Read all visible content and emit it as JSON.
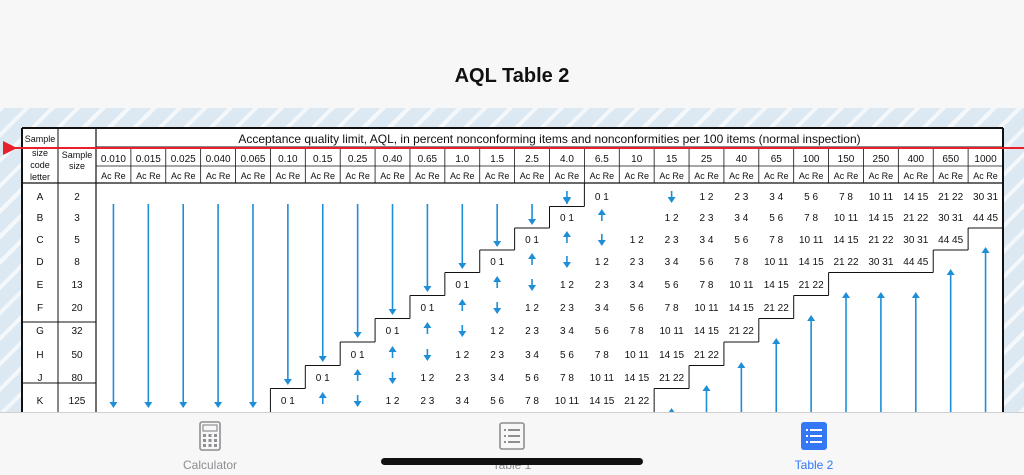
{
  "nav": {
    "title": "AQL Table 2"
  },
  "colors": {
    "arrow": "#1e8fd6",
    "slider": "#e8202a",
    "tab_active": "#3478f6",
    "tab_inactive": "#8e8e93"
  },
  "table": {
    "header": {
      "sample_size_code_letter": [
        "Sample",
        "size",
        "code",
        "letter"
      ],
      "sample_size": [
        "Sample",
        "size"
      ],
      "title": "Acceptance quality limit, AQL, in percent nonconforming items and nonconformities per 100 items (normal inspection)",
      "acre": "Ac Re"
    },
    "aql_values": [
      "0.010",
      "0.015",
      "0.025",
      "0.040",
      "0.065",
      "0.10",
      "0.15",
      "0.25",
      "0.40",
      "0.65",
      "1.0",
      "1.5",
      "2.5",
      "4.0",
      "6.5",
      "10",
      "15",
      "25",
      "40",
      "65",
      "100",
      "150",
      "250",
      "400",
      "650",
      "1000"
    ],
    "rows": [
      {
        "letter": "A",
        "size": "2"
      },
      {
        "letter": "B",
        "size": "3"
      },
      {
        "letter": "C",
        "size": "5"
      },
      {
        "letter": "D",
        "size": "8"
      },
      {
        "letter": "E",
        "size": "13"
      },
      {
        "letter": "F",
        "size": "20"
      },
      {
        "letter": "G",
        "size": "32"
      },
      {
        "letter": "H",
        "size": "50"
      },
      {
        "letter": "J",
        "size": "80"
      },
      {
        "letter": "K",
        "size": "125"
      }
    ],
    "cells": [
      {
        "row": 0,
        "col": 14,
        "text": "0  1"
      },
      {
        "row": 0,
        "col": 17,
        "text": "1  2"
      },
      {
        "row": 0,
        "col": 18,
        "text": "2  3"
      },
      {
        "row": 0,
        "col": 19,
        "text": "3  4"
      },
      {
        "row": 0,
        "col": 20,
        "text": "5  6"
      },
      {
        "row": 0,
        "col": 21,
        "text": "7  8"
      },
      {
        "row": 0,
        "col": 22,
        "text": "10 11"
      },
      {
        "row": 0,
        "col": 23,
        "text": "14 15"
      },
      {
        "row": 0,
        "col": 24,
        "text": "21 22"
      },
      {
        "row": 0,
        "col": 25,
        "text": "30 31"
      },
      {
        "row": 1,
        "col": 13,
        "text": "0  1"
      },
      {
        "row": 1,
        "col": 16,
        "text": "1  2"
      },
      {
        "row": 1,
        "col": 17,
        "text": "2  3"
      },
      {
        "row": 1,
        "col": 18,
        "text": "3  4"
      },
      {
        "row": 1,
        "col": 19,
        "text": "5  6"
      },
      {
        "row": 1,
        "col": 20,
        "text": "7  8"
      },
      {
        "row": 1,
        "col": 21,
        "text": "10 11"
      },
      {
        "row": 1,
        "col": 22,
        "text": "14 15"
      },
      {
        "row": 1,
        "col": 23,
        "text": "21 22"
      },
      {
        "row": 1,
        "col": 24,
        "text": "30 31"
      },
      {
        "row": 1,
        "col": 25,
        "text": "44 45"
      },
      {
        "row": 2,
        "col": 12,
        "text": "0  1"
      },
      {
        "row": 2,
        "col": 15,
        "text": "1  2"
      },
      {
        "row": 2,
        "col": 16,
        "text": "2  3"
      },
      {
        "row": 2,
        "col": 17,
        "text": "3  4"
      },
      {
        "row": 2,
        "col": 18,
        "text": "5  6"
      },
      {
        "row": 2,
        "col": 19,
        "text": "7  8"
      },
      {
        "row": 2,
        "col": 20,
        "text": "10 11"
      },
      {
        "row": 2,
        "col": 21,
        "text": "14 15"
      },
      {
        "row": 2,
        "col": 22,
        "text": "21 22"
      },
      {
        "row": 2,
        "col": 23,
        "text": "30 31"
      },
      {
        "row": 2,
        "col": 24,
        "text": "44 45"
      },
      {
        "row": 3,
        "col": 11,
        "text": "0  1"
      },
      {
        "row": 3,
        "col": 14,
        "text": "1  2"
      },
      {
        "row": 3,
        "col": 15,
        "text": "2  3"
      },
      {
        "row": 3,
        "col": 16,
        "text": "3  4"
      },
      {
        "row": 3,
        "col": 17,
        "text": "5  6"
      },
      {
        "row": 3,
        "col": 18,
        "text": "7  8"
      },
      {
        "row": 3,
        "col": 19,
        "text": "10 11"
      },
      {
        "row": 3,
        "col": 20,
        "text": "14 15"
      },
      {
        "row": 3,
        "col": 21,
        "text": "21 22"
      },
      {
        "row": 3,
        "col": 22,
        "text": "30 31"
      },
      {
        "row": 3,
        "col": 23,
        "text": "44 45"
      },
      {
        "row": 4,
        "col": 10,
        "text": "0  1"
      },
      {
        "row": 4,
        "col": 13,
        "text": "1  2"
      },
      {
        "row": 4,
        "col": 14,
        "text": "2  3"
      },
      {
        "row": 4,
        "col": 15,
        "text": "3  4"
      },
      {
        "row": 4,
        "col": 16,
        "text": "5  6"
      },
      {
        "row": 4,
        "col": 17,
        "text": "7  8"
      },
      {
        "row": 4,
        "col": 18,
        "text": "10 11"
      },
      {
        "row": 4,
        "col": 19,
        "text": "14 15"
      },
      {
        "row": 4,
        "col": 20,
        "text": "21 22"
      },
      {
        "row": 5,
        "col": 9,
        "text": "0  1"
      },
      {
        "row": 5,
        "col": 12,
        "text": "1  2"
      },
      {
        "row": 5,
        "col": 13,
        "text": "2  3"
      },
      {
        "row": 5,
        "col": 14,
        "text": "3  4"
      },
      {
        "row": 5,
        "col": 15,
        "text": "5  6"
      },
      {
        "row": 5,
        "col": 16,
        "text": "7  8"
      },
      {
        "row": 5,
        "col": 17,
        "text": "10 11"
      },
      {
        "row": 5,
        "col": 18,
        "text": "14 15"
      },
      {
        "row": 5,
        "col": 19,
        "text": "21 22"
      },
      {
        "row": 6,
        "col": 8,
        "text": "0  1"
      },
      {
        "row": 6,
        "col": 11,
        "text": "1  2"
      },
      {
        "row": 6,
        "col": 12,
        "text": "2  3"
      },
      {
        "row": 6,
        "col": 13,
        "text": "3  4"
      },
      {
        "row": 6,
        "col": 14,
        "text": "5  6"
      },
      {
        "row": 6,
        "col": 15,
        "text": "7  8"
      },
      {
        "row": 6,
        "col": 16,
        "text": "10 11"
      },
      {
        "row": 6,
        "col": 17,
        "text": "14 15"
      },
      {
        "row": 6,
        "col": 18,
        "text": "21 22"
      },
      {
        "row": 7,
        "col": 7,
        "text": "0  1"
      },
      {
        "row": 7,
        "col": 10,
        "text": "1  2"
      },
      {
        "row": 7,
        "col": 11,
        "text": "2  3"
      },
      {
        "row": 7,
        "col": 12,
        "text": "3  4"
      },
      {
        "row": 7,
        "col": 13,
        "text": "5  6"
      },
      {
        "row": 7,
        "col": 14,
        "text": "7  8"
      },
      {
        "row": 7,
        "col": 15,
        "text": "10 11"
      },
      {
        "row": 7,
        "col": 16,
        "text": "14 15"
      },
      {
        "row": 7,
        "col": 17,
        "text": "21 22"
      },
      {
        "row": 8,
        "col": 6,
        "text": "0  1"
      },
      {
        "row": 8,
        "col": 9,
        "text": "1  2"
      },
      {
        "row": 8,
        "col": 10,
        "text": "2  3"
      },
      {
        "row": 8,
        "col": 11,
        "text": "3  4"
      },
      {
        "row": 8,
        "col": 12,
        "text": "5  6"
      },
      {
        "row": 8,
        "col": 13,
        "text": "7  8"
      },
      {
        "row": 8,
        "col": 14,
        "text": "10 11"
      },
      {
        "row": 8,
        "col": 15,
        "text": "14 15"
      },
      {
        "row": 8,
        "col": 16,
        "text": "21 22"
      },
      {
        "row": 9,
        "col": 5,
        "text": "0  1"
      },
      {
        "row": 9,
        "col": 8,
        "text": "1  2"
      },
      {
        "row": 9,
        "col": 9,
        "text": "2  3"
      },
      {
        "row": 9,
        "col": 10,
        "text": "3  4"
      },
      {
        "row": 9,
        "col": 11,
        "text": "5  6"
      },
      {
        "row": 9,
        "col": 12,
        "text": "7  8"
      },
      {
        "row": 9,
        "col": 13,
        "text": "10 11"
      },
      {
        "row": 9,
        "col": 14,
        "text": "14 15"
      },
      {
        "row": 9,
        "col": 15,
        "text": "21 22"
      }
    ],
    "long_down_arrows": [
      {
        "col": 0,
        "to_row": 9
      },
      {
        "col": 1,
        "to_row": 9
      },
      {
        "col": 2,
        "to_row": 9
      },
      {
        "col": 3,
        "to_row": 9
      },
      {
        "col": 4,
        "to_row": 9
      },
      {
        "col": 5,
        "to_row": 8
      },
      {
        "col": 6,
        "to_row": 7
      },
      {
        "col": 7,
        "to_row": 6
      },
      {
        "col": 8,
        "to_row": 5
      },
      {
        "col": 9,
        "to_row": 4
      },
      {
        "col": 10,
        "to_row": 3
      },
      {
        "col": 11,
        "to_row": 2
      },
      {
        "col": 12,
        "to_row": 1
      },
      {
        "col": 13,
        "to_row": 0
      }
    ],
    "long_up_arrows": [
      {
        "col": 16,
        "from_row": 9
      },
      {
        "col": 17,
        "from_row": 8
      },
      {
        "col": 18,
        "from_row": 7
      },
      {
        "col": 19,
        "from_row": 6
      },
      {
        "col": 20,
        "from_row": 5
      },
      {
        "col": 21,
        "from_row": 4
      },
      {
        "col": 22,
        "from_row": 4
      },
      {
        "col": 23,
        "from_row": 4
      },
      {
        "col": 24,
        "from_row": 3
      },
      {
        "col": 25,
        "from_row": 2
      }
    ],
    "short_up_arrows": [
      {
        "row": 1,
        "col": 14
      },
      {
        "row": 2,
        "col": 13
      },
      {
        "row": 3,
        "col": 12
      },
      {
        "row": 4,
        "col": 11
      },
      {
        "row": 5,
        "col": 10
      },
      {
        "row": 6,
        "col": 9
      },
      {
        "row": 7,
        "col": 8
      },
      {
        "row": 8,
        "col": 7
      },
      {
        "row": 9,
        "col": 6
      }
    ],
    "short_down_arrows": [
      {
        "row": 0,
        "col": 13
      },
      {
        "row": 0,
        "col": 16
      },
      {
        "row": 2,
        "col": 14
      },
      {
        "row": 3,
        "col": 13
      },
      {
        "row": 4,
        "col": 12
      },
      {
        "row": 5,
        "col": 11
      },
      {
        "row": 6,
        "col": 10
      },
      {
        "row": 7,
        "col": 9
      },
      {
        "row": 8,
        "col": 8
      },
      {
        "row": 9,
        "col": 7
      }
    ]
  },
  "tabs": [
    {
      "label": "Calculator",
      "icon": "calculator-icon",
      "active": false
    },
    {
      "label": "Table 1",
      "icon": "list-icon",
      "active": false
    },
    {
      "label": "Table 2",
      "icon": "list-icon",
      "active": true
    }
  ]
}
